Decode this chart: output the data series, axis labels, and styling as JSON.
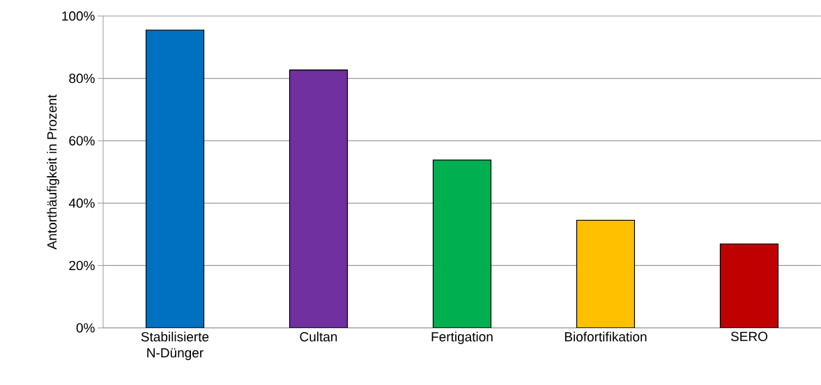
{
  "chart_data": {
    "type": "bar",
    "ylabel": "Antorthäufigkeit in Prozent",
    "categories": [
      "Stabilisierte N-Dünger",
      "Cultan",
      "Fertigation",
      "Biofortifikation",
      "SERO"
    ],
    "values": [
      95.5,
      82.7,
      53.8,
      34.5,
      26.9
    ],
    "colors": [
      "#0070c0",
      "#7030a0",
      "#00b050",
      "#ffc000",
      "#c00000"
    ],
    "ylim": [
      0,
      100
    ],
    "yticks": [
      {
        "value": 0,
        "label": "0%"
      },
      {
        "value": 20,
        "label": "20%"
      },
      {
        "value": 40,
        "label": "40%"
      },
      {
        "value": 60,
        "label": "60%"
      },
      {
        "value": 80,
        "label": "80%"
      },
      {
        "value": 100,
        "label": "100%"
      }
    ],
    "grid": "y"
  }
}
